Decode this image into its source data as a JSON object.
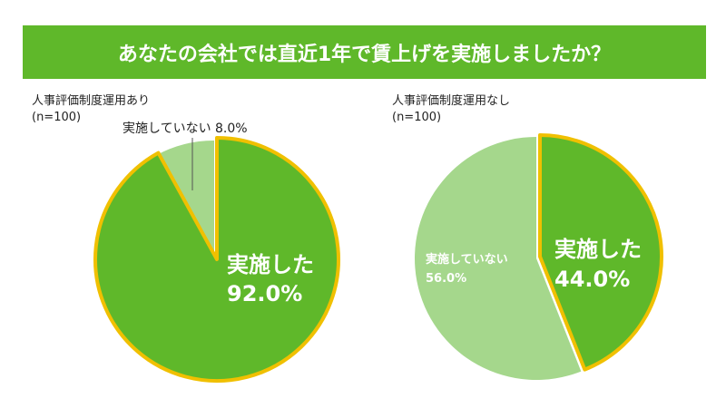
{
  "title": "あなたの会社では直近1年で賃上げを実施しましたか？",
  "colors": {
    "implemented": "#5fb82a",
    "not_implemented": "#a5d78c",
    "outline": "#f0c000",
    "banner": "#5fb82a"
  },
  "chart_data": [
    {
      "type": "pie",
      "title": "人事評価制度運用あり",
      "subtitle": "(n=100)",
      "categories": [
        "実施した",
        "実施していない"
      ],
      "values": [
        92.0,
        8.0
      ],
      "labels": [
        "92.0%",
        "8.0%"
      ],
      "highlighted": "実施した"
    },
    {
      "type": "pie",
      "title": "人事評価制度運用なし",
      "subtitle": "(n=100)",
      "categories": [
        "実施した",
        "実施していない"
      ],
      "values": [
        44.0,
        56.0
      ],
      "labels": [
        "44.0%",
        "56.0%"
      ],
      "highlighted": "実施した"
    }
  ]
}
